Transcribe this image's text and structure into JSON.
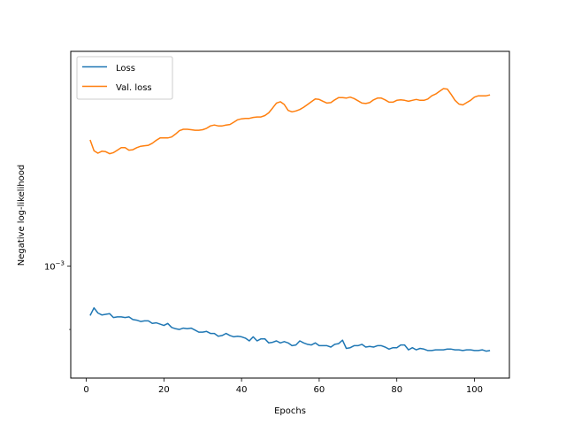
{
  "chart_data": {
    "type": "line",
    "title": "",
    "xlabel": "Epochs",
    "ylabel": "Negative log-likelihood",
    "yscale": "log",
    "xlim": [
      -4,
      109
    ],
    "ylim": [
      0.00083,
      0.00143
    ],
    "x_ticks": [
      0,
      20,
      40,
      60,
      80,
      100
    ],
    "y_ticks": [
      {
        "value": 0.001,
        "label": "10",
        "exponent": "−3"
      }
    ],
    "grid": false,
    "legend": "top-left",
    "colors": {
      "Loss": "#1f77b4",
      "Val. loss": "#ff7f0e"
    },
    "series": [
      {
        "name": "Loss",
        "x": [
          1,
          2,
          3,
          4,
          5,
          6,
          7,
          8,
          9,
          10,
          11,
          12,
          13,
          14,
          15,
          16,
          17,
          18,
          19,
          20,
          21,
          22,
          23,
          24,
          25,
          26,
          27,
          28,
          29,
          30,
          31,
          32,
          33,
          34,
          35,
          36,
          37,
          38,
          39,
          40,
          41,
          42,
          43,
          44,
          45,
          46,
          47,
          48,
          49,
          50,
          51,
          52,
          53,
          54,
          55,
          56,
          57,
          58,
          59,
          60,
          61,
          62,
          63,
          64,
          65,
          66,
          67,
          68,
          69,
          70,
          71,
          72,
          73,
          74,
          75,
          76,
          77,
          78,
          79,
          80,
          81,
          82,
          83,
          84,
          85,
          86,
          87,
          88,
          89,
          90,
          91,
          92,
          93,
          94,
          95,
          96,
          97,
          98,
          99,
          100,
          101,
          102,
          103,
          104
        ],
        "y": [
          0.000921,
          0.000933,
          0.000925,
          0.000922,
          0.000923,
          0.000924,
          0.000918,
          0.000919,
          0.000919,
          0.000918,
          0.000919,
          0.000915,
          0.000914,
          0.000912,
          0.000913,
          0.000913,
          0.000909,
          0.00091,
          0.000908,
          0.000906,
          0.000909,
          0.000903,
          0.000901,
          0.0009,
          0.000902,
          0.000901,
          0.000902,
          0.000899,
          0.000896,
          0.000896,
          0.000897,
          0.000894,
          0.000894,
          0.00089,
          0.000891,
          0.000894,
          0.000891,
          0.000889,
          0.00089,
          0.000889,
          0.000887,
          0.000883,
          0.000889,
          0.000883,
          0.000886,
          0.000886,
          0.00088,
          0.000881,
          0.000883,
          0.00088,
          0.000882,
          0.00088,
          0.000876,
          0.000877,
          0.000883,
          0.00088,
          0.000878,
          0.000877,
          0.00088,
          0.000876,
          0.000876,
          0.000876,
          0.000874,
          0.000878,
          0.000879,
          0.000884,
          0.000872,
          0.000873,
          0.000876,
          0.000876,
          0.000878,
          0.000874,
          0.000875,
          0.000874,
          0.000876,
          0.000876,
          0.000874,
          0.000871,
          0.000873,
          0.000873,
          0.000877,
          0.000877,
          0.00087,
          0.000873,
          0.00087,
          0.000872,
          0.000871,
          0.000869,
          0.000869,
          0.00087,
          0.00087,
          0.00087,
          0.000871,
          0.000871,
          0.00087,
          0.00087,
          0.000869,
          0.00087,
          0.00087,
          0.000869,
          0.000869,
          0.00087,
          0.000868,
          0.000869
        ]
      },
      {
        "name": "Val. loss",
        "x": [
          1,
          2,
          3,
          4,
          5,
          6,
          7,
          8,
          9,
          10,
          11,
          12,
          13,
          14,
          15,
          16,
          17,
          18,
          19,
          20,
          21,
          22,
          23,
          24,
          25,
          26,
          27,
          28,
          29,
          30,
          31,
          32,
          33,
          34,
          35,
          36,
          37,
          38,
          39,
          40,
          41,
          42,
          43,
          44,
          45,
          46,
          47,
          48,
          49,
          50,
          51,
          52,
          53,
          54,
          55,
          56,
          57,
          58,
          59,
          60,
          61,
          62,
          63,
          64,
          65,
          66,
          67,
          68,
          69,
          70,
          71,
          72,
          73,
          74,
          75,
          76,
          77,
          78,
          79,
          80,
          81,
          82,
          83,
          84,
          85,
          86,
          87,
          88,
          89,
          90,
          91,
          92,
          93,
          94,
          95,
          96,
          97,
          98,
          99,
          100,
          101,
          102,
          103,
          104
        ],
        "y": [
          0.001234,
          0.001212,
          0.001207,
          0.001211,
          0.00121,
          0.001206,
          0.001208,
          0.001213,
          0.001218,
          0.001218,
          0.001213,
          0.001214,
          0.001218,
          0.001221,
          0.001222,
          0.001223,
          0.001227,
          0.001233,
          0.001238,
          0.001238,
          0.001238,
          0.00124,
          0.001246,
          0.001253,
          0.001256,
          0.001256,
          0.001255,
          0.001254,
          0.001254,
          0.001255,
          0.001258,
          0.001263,
          0.001265,
          0.001263,
          0.001263,
          0.001265,
          0.001266,
          0.001271,
          0.001276,
          0.001278,
          0.001279,
          0.001279,
          0.001281,
          0.001282,
          0.001282,
          0.001285,
          0.001291,
          0.001301,
          0.001312,
          0.001315,
          0.001309,
          0.001296,
          0.001293,
          0.001295,
          0.001298,
          0.001303,
          0.001309,
          0.001315,
          0.001321,
          0.00132,
          0.001316,
          0.001312,
          0.001313,
          0.001319,
          0.001324,
          0.001324,
          0.001323,
          0.001325,
          0.001322,
          0.001317,
          0.001312,
          0.001311,
          0.001313,
          0.001319,
          0.001323,
          0.001323,
          0.001319,
          0.001314,
          0.001314,
          0.001318,
          0.001319,
          0.001318,
          0.001316,
          0.001318,
          0.00132,
          0.001318,
          0.001318,
          0.001321,
          0.001328,
          0.001332,
          0.001338,
          0.001344,
          0.001343,
          0.001331,
          0.001318,
          0.00131,
          0.001308,
          0.001313,
          0.001318,
          0.001325,
          0.001328,
          0.001328,
          0.001328,
          0.00133
        ]
      }
    ]
  }
}
